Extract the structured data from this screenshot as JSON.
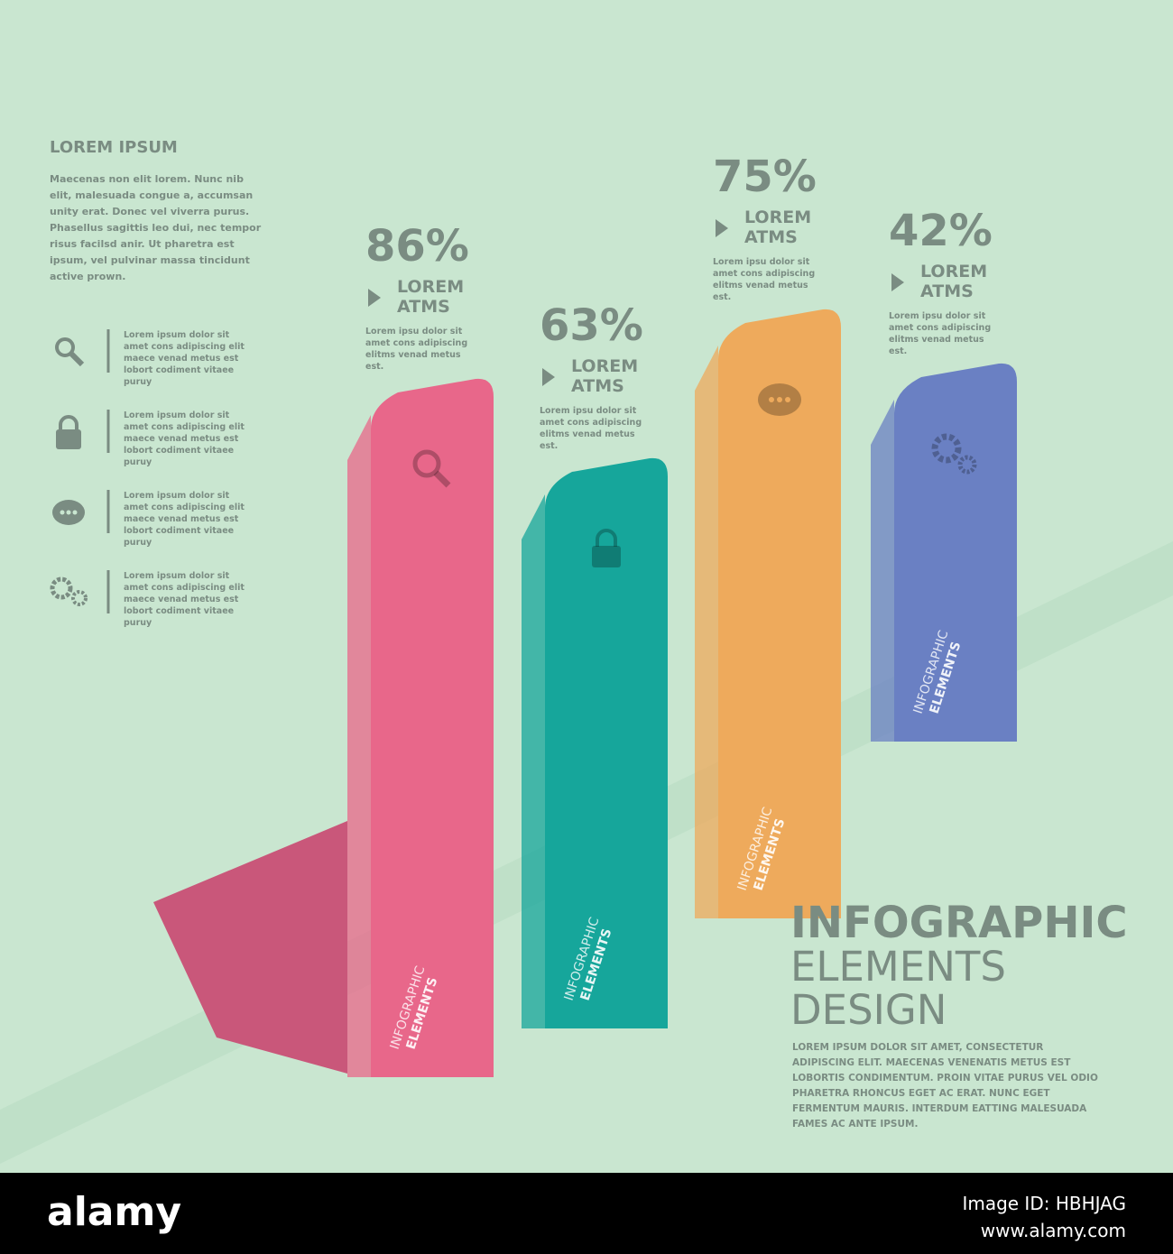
{
  "sidebar": {
    "title": "LOREM IPSUM",
    "text": "Maecenas non elit lorem. Nunc nib elit, malesuada congue a, accumsan unity erat. Donec vel viverra purus. Phasellus sagittis leo dui, nec tempor risus facilsd anir. Ut pharetra est ipsum, vel pulvinar massa tincidunt active prown."
  },
  "features": [
    "Lorem ipsum dolor sit amet cons adipiscing elit maece venad metus est lobort codiment vitaee puruy",
    "Lorem ipsum dolor sit amet cons adipiscing elit maece venad metus est lobort codiment vitaee puruy",
    "Lorem ipsum dolor sit amet cons adipiscing elit maece venad metus est lobort codiment vitaee puruy",
    "Lorem ipsum dolor sit amet cons adipiscing elit maece venad metus est lobort codiment vitaee puruy"
  ],
  "chart_data": {
    "type": "bar",
    "values": [
      86,
      63,
      75,
      42
    ],
    "value_labels": [
      "86%",
      "63%",
      "75%",
      "42%"
    ],
    "categories": [
      "LOREM ATMS",
      "LOREM ATMS",
      "LOREM ATMS",
      "LOREM ATMS"
    ],
    "descriptions": [
      "Lorem ipsu dolor sit amet cons adipiscing elitms venad metus est.",
      "Lorem ipsu dolor sit amet cons adipiscing elitms venad metus est.",
      "Lorem ipsu dolor sit amet cons adipiscing elitms venad metus est.",
      "Lorem ipsu dolor sit amet cons adipiscing elitms venad metus est."
    ],
    "bar_label_top": "INFOGRAPHIC",
    "bar_label_bottom": "ELEMENTS",
    "colors": [
      "#e8678a",
      "#16a69b",
      "#eeaa5c",
      "#6a80c3"
    ]
  },
  "footer": {
    "line1": "INFOGRAPHIC",
    "line2": "ELEMENTS",
    "line3": "DESIGN",
    "text": "LOREM IPSUM DOLOR SIT AMET, CONSECTETUR ADIPISCING ELIT. MAECENAS VENENATIS METUS EST LOBORTIS CONDIMENTUM. PROIN VITAE PURUS VEL ODIO PHARETRA RHONCUS EGET AC ERAT. NUNC EGET FERMENTUM MAURIS. INTERDUM EATTING MALESUADA FAMES AC ANTE IPSUM."
  },
  "watermark": {
    "logo": "alamy",
    "image_id": "Image ID: HBHJAG",
    "url": "www.alamy.com"
  }
}
